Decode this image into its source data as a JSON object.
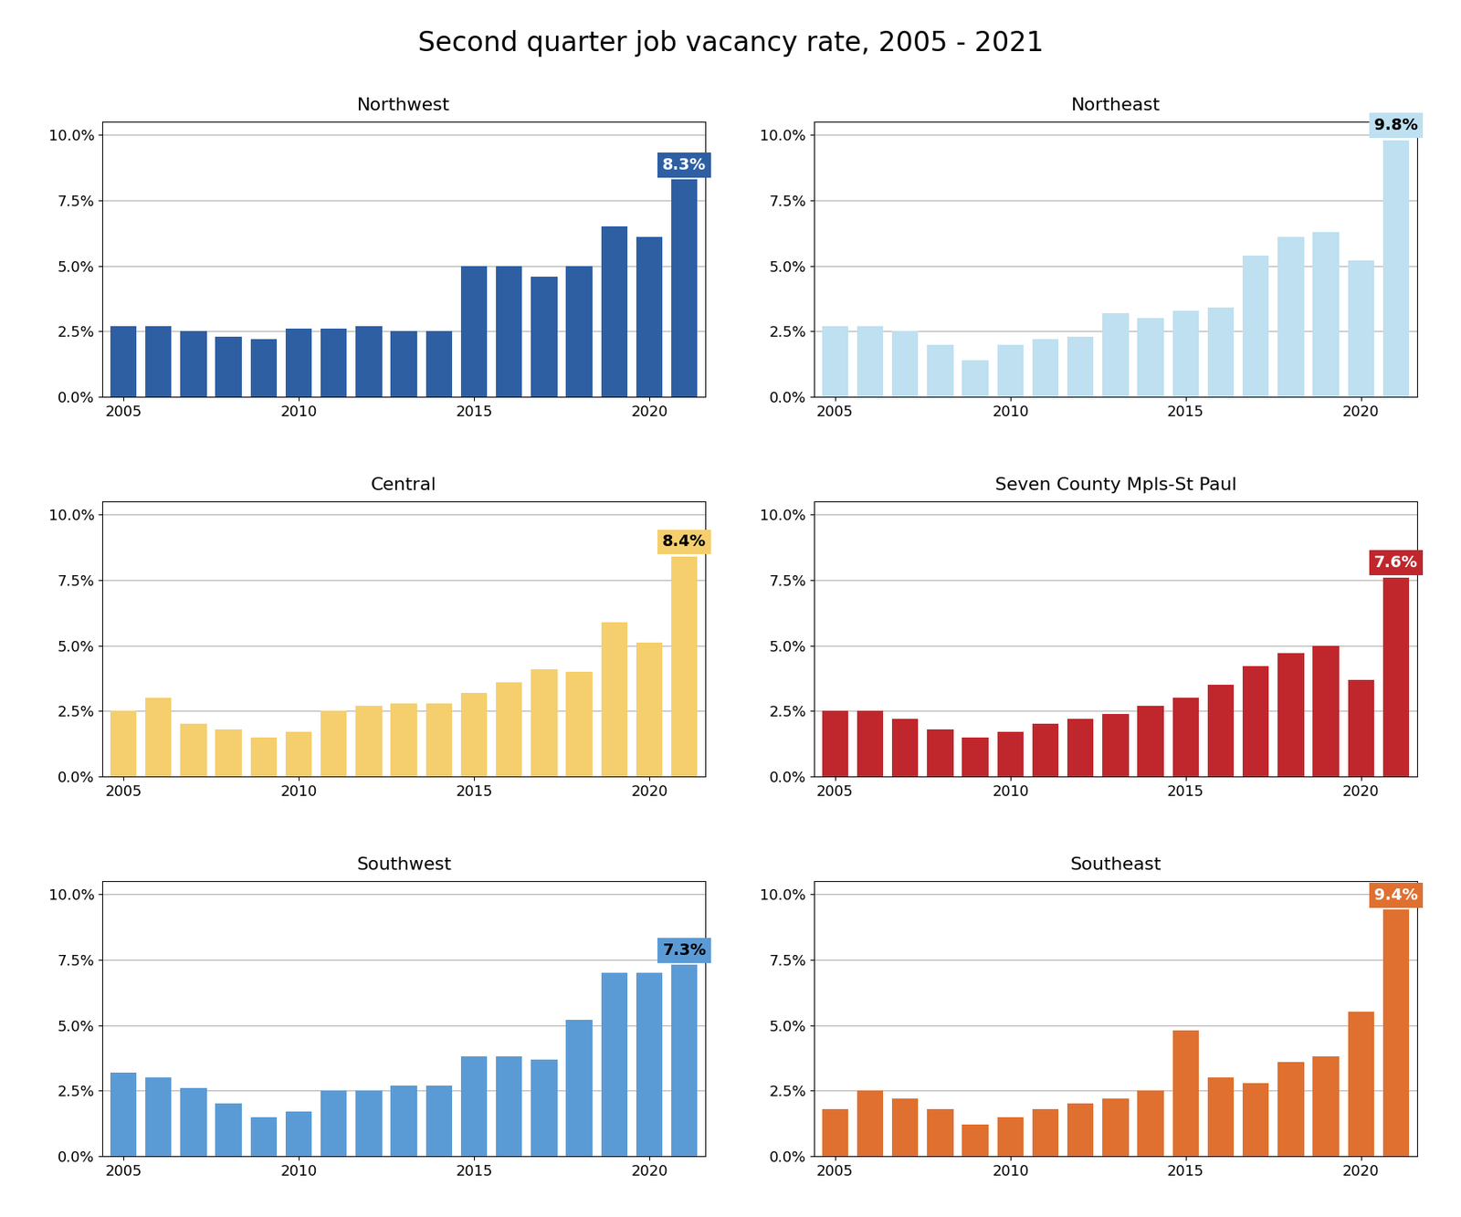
{
  "title": "Second quarter job vacancy rate, 2005 - 2021",
  "chart_data": [
    {
      "type": "bar",
      "title": "Northwest",
      "x": [
        2005,
        2006,
        2007,
        2008,
        2009,
        2010,
        2011,
        2012,
        2013,
        2014,
        2015,
        2016,
        2017,
        2018,
        2019,
        2020,
        2021
      ],
      "values": [
        2.7,
        2.7,
        2.5,
        2.3,
        2.2,
        2.6,
        2.6,
        2.7,
        2.5,
        2.5,
        5.0,
        5.0,
        4.6,
        5.0,
        6.5,
        6.1,
        8.3
      ],
      "color": "#2E5FA3",
      "xlim": [
        2004.4,
        2021.6
      ],
      "xticks": [
        2005,
        2010,
        2015,
        2020
      ],
      "ylim": [
        0,
        10.5
      ],
      "yticks": [
        {
          "value": 0.0,
          "label": "0.0%"
        },
        {
          "value": 2.5,
          "label": "2.5%"
        },
        {
          "value": 5.0,
          "label": "5.0%"
        },
        {
          "value": 7.5,
          "label": "7.5%"
        },
        {
          "value": 10.0,
          "label": "10.0%"
        }
      ],
      "grid": "y",
      "data_labels": true,
      "value_labels": [
        null,
        null,
        null,
        null,
        null,
        null,
        null,
        null,
        null,
        null,
        null,
        null,
        null,
        null,
        null,
        null,
        "8.3%"
      ]
    },
    {
      "type": "bar",
      "title": "Northeast",
      "x": [
        2005,
        2006,
        2007,
        2008,
        2009,
        2010,
        2011,
        2012,
        2013,
        2014,
        2015,
        2016,
        2017,
        2018,
        2019,
        2020,
        2021
      ],
      "values": [
        2.7,
        2.7,
        2.5,
        2.0,
        1.4,
        2.0,
        2.2,
        2.3,
        3.2,
        3.0,
        3.3,
        3.4,
        5.4,
        6.1,
        6.3,
        5.2,
        9.8
      ],
      "color": "#BEE0F0",
      "xlim": [
        2004.4,
        2021.6
      ],
      "xticks": [
        2005,
        2010,
        2015,
        2020
      ],
      "ylim": [
        0,
        10.5
      ],
      "yticks": [
        {
          "value": 0.0,
          "label": "0.0%"
        },
        {
          "value": 2.5,
          "label": "2.5%"
        },
        {
          "value": 5.0,
          "label": "5.0%"
        },
        {
          "value": 7.5,
          "label": "7.5%"
        },
        {
          "value": 10.0,
          "label": "10.0%"
        }
      ],
      "grid": "y",
      "data_labels": true,
      "value_labels": [
        null,
        null,
        null,
        null,
        null,
        null,
        null,
        null,
        null,
        null,
        null,
        null,
        null,
        null,
        null,
        null,
        "9.8%"
      ]
    },
    {
      "type": "bar",
      "title": "Central",
      "x": [
        2005,
        2006,
        2007,
        2008,
        2009,
        2010,
        2011,
        2012,
        2013,
        2014,
        2015,
        2016,
        2017,
        2018,
        2019,
        2020,
        2021
      ],
      "values": [
        2.5,
        3.0,
        2.0,
        1.8,
        1.5,
        1.7,
        2.5,
        2.7,
        2.8,
        2.8,
        3.2,
        3.6,
        4.1,
        4.0,
        5.9,
        5.1,
        8.4
      ],
      "color": "#F5CF6E",
      "xlim": [
        2004.4,
        2021.6
      ],
      "xticks": [
        2005,
        2010,
        2015,
        2020
      ],
      "ylim": [
        0,
        10.5
      ],
      "yticks": [
        {
          "value": 0.0,
          "label": "0.0%"
        },
        {
          "value": 2.5,
          "label": "2.5%"
        },
        {
          "value": 5.0,
          "label": "5.0%"
        },
        {
          "value": 7.5,
          "label": "7.5%"
        },
        {
          "value": 10.0,
          "label": "10.0%"
        }
      ],
      "grid": "y",
      "data_labels": true,
      "value_labels": [
        null,
        null,
        null,
        null,
        null,
        null,
        null,
        null,
        null,
        null,
        null,
        null,
        null,
        null,
        null,
        null,
        "8.4%"
      ]
    },
    {
      "type": "bar",
      "title": "Seven County Mpls-St Paul",
      "x": [
        2005,
        2006,
        2007,
        2008,
        2009,
        2010,
        2011,
        2012,
        2013,
        2014,
        2015,
        2016,
        2017,
        2018,
        2019,
        2020,
        2021
      ],
      "values": [
        2.5,
        2.5,
        2.2,
        1.8,
        1.5,
        1.7,
        2.0,
        2.2,
        2.4,
        2.7,
        3.0,
        3.5,
        4.2,
        4.7,
        5.0,
        3.7,
        7.6
      ],
      "color": "#C0272D",
      "xlim": [
        2004.4,
        2021.6
      ],
      "xticks": [
        2005,
        2010,
        2015,
        2020
      ],
      "ylim": [
        0,
        10.5
      ],
      "yticks": [
        {
          "value": 0.0,
          "label": "0.0%"
        },
        {
          "value": 2.5,
          "label": "2.5%"
        },
        {
          "value": 5.0,
          "label": "5.0%"
        },
        {
          "value": 7.5,
          "label": "7.5%"
        },
        {
          "value": 10.0,
          "label": "10.0%"
        }
      ],
      "grid": "y",
      "data_labels": true,
      "value_labels": [
        null,
        null,
        null,
        null,
        null,
        null,
        null,
        null,
        null,
        null,
        null,
        null,
        null,
        null,
        null,
        null,
        "7.6%"
      ]
    },
    {
      "type": "bar",
      "title": "Southwest",
      "x": [
        2005,
        2006,
        2007,
        2008,
        2009,
        2010,
        2011,
        2012,
        2013,
        2014,
        2015,
        2016,
        2017,
        2018,
        2019,
        2020,
        2021
      ],
      "values": [
        3.2,
        3.0,
        2.6,
        2.0,
        1.5,
        1.7,
        2.5,
        2.5,
        2.7,
        2.7,
        3.8,
        3.8,
        3.7,
        5.2,
        7.0,
        7.0,
        7.3
      ],
      "color": "#5B9BD5",
      "xlim": [
        2004.4,
        2021.6
      ],
      "xticks": [
        2005,
        2010,
        2015,
        2020
      ],
      "ylim": [
        0,
        10.5
      ],
      "yticks": [
        {
          "value": 0.0,
          "label": "0.0%"
        },
        {
          "value": 2.5,
          "label": "2.5%"
        },
        {
          "value": 5.0,
          "label": "5.0%"
        },
        {
          "value": 7.5,
          "label": "7.5%"
        },
        {
          "value": 10.0,
          "label": "10.0%"
        }
      ],
      "grid": "y",
      "data_labels": true,
      "value_labels": [
        null,
        null,
        null,
        null,
        null,
        null,
        null,
        null,
        null,
        null,
        null,
        null,
        null,
        null,
        null,
        null,
        "7.3%"
      ]
    },
    {
      "type": "bar",
      "title": "Southeast",
      "x": [
        2005,
        2006,
        2007,
        2008,
        2009,
        2010,
        2011,
        2012,
        2013,
        2014,
        2015,
        2016,
        2017,
        2018,
        2019,
        2020,
        2021
      ],
      "values": [
        1.8,
        2.5,
        2.2,
        1.8,
        1.2,
        1.5,
        1.8,
        2.0,
        2.2,
        2.5,
        4.8,
        3.0,
        2.8,
        3.6,
        3.8,
        5.5,
        9.4
      ],
      "color": "#E07030",
      "xlim": [
        2004.4,
        2021.6
      ],
      "xticks": [
        2005,
        2010,
        2015,
        2020
      ],
      "ylim": [
        0,
        10.5
      ],
      "yticks": [
        {
          "value": 0.0,
          "label": "0.0%"
        },
        {
          "value": 2.5,
          "label": "2.5%"
        },
        {
          "value": 5.0,
          "label": "5.0%"
        },
        {
          "value": 7.5,
          "label": "7.5%"
        },
        {
          "value": 10.0,
          "label": "10.0%"
        }
      ],
      "grid": "y",
      "data_labels": true,
      "value_labels": [
        null,
        null,
        null,
        null,
        null,
        null,
        null,
        null,
        null,
        null,
        null,
        null,
        null,
        null,
        null,
        null,
        "9.4%"
      ]
    }
  ]
}
